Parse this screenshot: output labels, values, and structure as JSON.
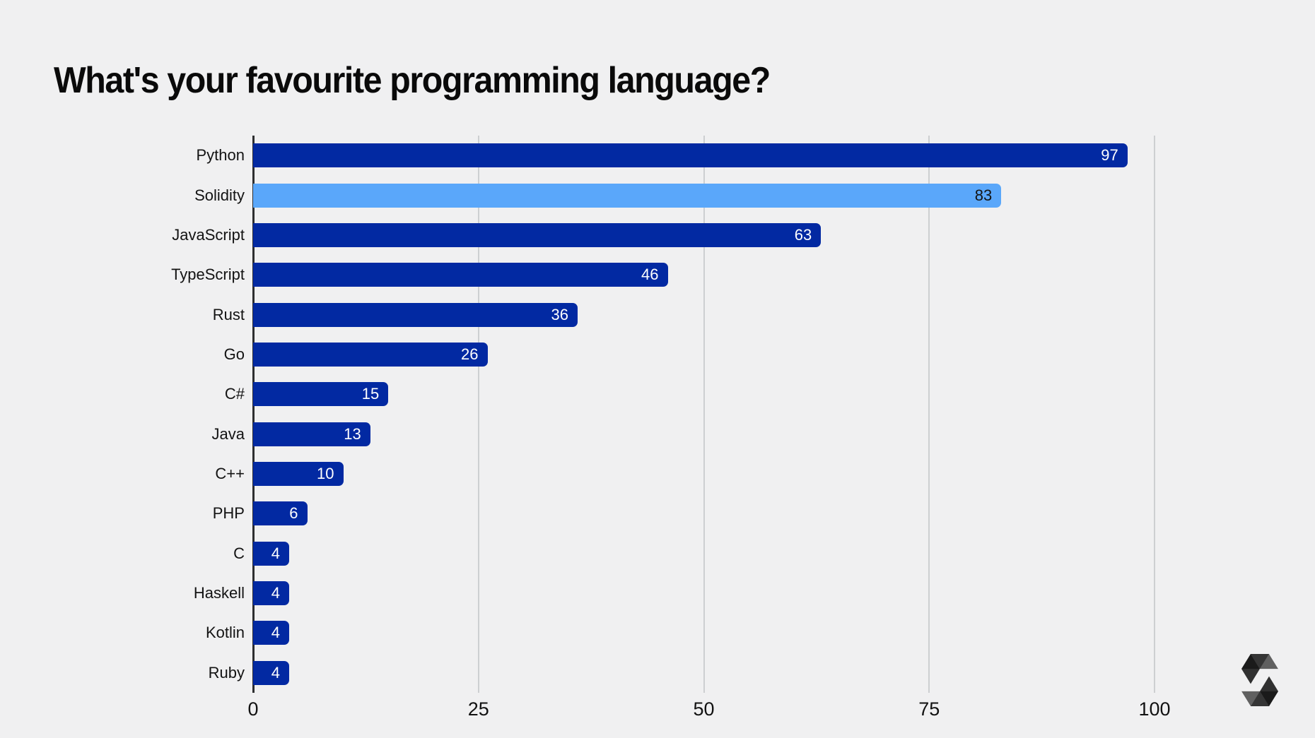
{
  "title": "What's your favourite programming language?",
  "chart_data": {
    "type": "bar",
    "orientation": "horizontal",
    "title": "What's your favourite programming language?",
    "categories": [
      "Python",
      "Solidity",
      "JavaScript",
      "TypeScript",
      "Rust",
      "Go",
      "C#",
      "Java",
      "C++",
      "PHP",
      "C",
      "Haskell",
      "Kotlin",
      "Ruby"
    ],
    "values": [
      97,
      83,
      63,
      46,
      36,
      26,
      15,
      13,
      10,
      6,
      4,
      4,
      4,
      4
    ],
    "highlight_category": "Solidity",
    "highlight_index": 1,
    "xlim": [
      0,
      100
    ],
    "x_ticks": [
      "0",
      "25",
      "50",
      "75",
      "100"
    ],
    "grid": true,
    "legend": "none",
    "value_labels_position": "inside-end",
    "colors": {
      "bar": "#0229a2",
      "highlight_bar": "#5aa7fa",
      "value_label": "#ffffff",
      "highlight_value_label": "#141414",
      "gridline": "#cdcfd1",
      "axis_line": "#2d2e30",
      "background": "#f0f0f1",
      "text": "#131313"
    }
  },
  "logo": {
    "name": "solidity-logo",
    "fill": "#000000",
    "layer_opacities": [
      0.45,
      0.6,
      0.8
    ]
  }
}
